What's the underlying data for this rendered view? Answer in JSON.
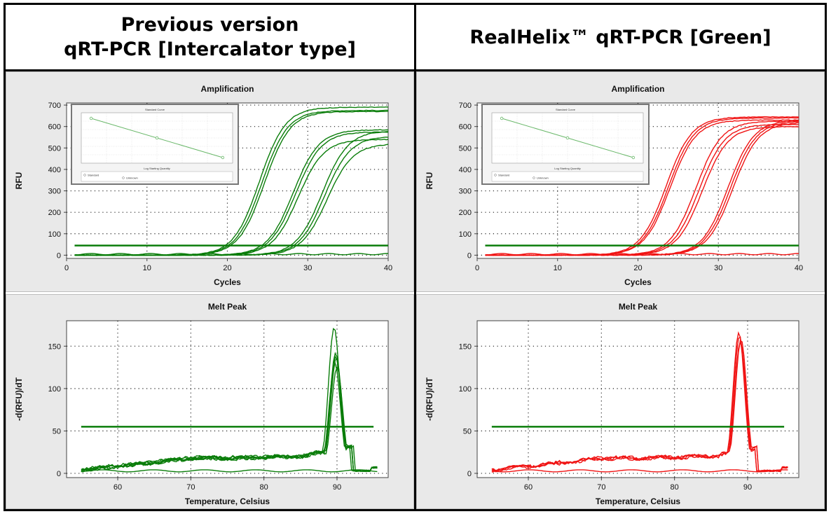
{
  "headers": {
    "left_line1": "Previous version",
    "left_line2": "qRT-PCR [Intercalator type]",
    "right_line1": "RealHelix™ qRT-PCR [Green]"
  },
  "colors": {
    "green": "#0a7d0a",
    "red": "#f01414",
    "threshold": "#0a7d0a",
    "inset_line": "#6ab86a"
  },
  "chart_data": [
    {
      "id": "amp-left",
      "type": "line",
      "title": "Amplification",
      "xlabel": "Cycles",
      "ylabel": "RFU",
      "xlim": [
        0,
        40
      ],
      "ylim": [
        -15,
        710
      ],
      "xticks": [
        0,
        10,
        20,
        30,
        40
      ],
      "yticks": [
        0,
        100,
        200,
        300,
        400,
        500,
        600,
        700
      ],
      "grid": true,
      "color": "green",
      "threshold": 45,
      "series": [
        {
          "ct": 24,
          "plateau": 690
        },
        {
          "ct": 24.3,
          "plateau": 675
        },
        {
          "ct": 24.6,
          "plateau": 670
        },
        {
          "ct": 28.2,
          "plateau": 585
        },
        {
          "ct": 28.5,
          "plateau": 575
        },
        {
          "ct": 28.8,
          "plateau": 540
        },
        {
          "ct": 31.8,
          "plateau": 580
        },
        {
          "ct": 32.1,
          "plateau": 555
        },
        {
          "ct": 32.4,
          "plateau": 520
        },
        {
          "ct": null,
          "plateau": 5
        }
      ],
      "inset": {
        "title": "Standard Curve",
        "xlabel": "Log Starting Quantity",
        "legend": [
          "Standard",
          "Unknown"
        ],
        "points": [
          [
            2,
            37
          ],
          [
            4,
            30
          ],
          [
            6,
            23
          ]
        ]
      }
    },
    {
      "id": "amp-right",
      "type": "line",
      "title": "Amplification",
      "xlabel": "Cycles",
      "ylabel": "RFU",
      "xlim": [
        0,
        40
      ],
      "ylim": [
        -15,
        710
      ],
      "xticks": [
        0,
        10,
        20,
        30,
        40
      ],
      "yticks": [
        0,
        100,
        200,
        300,
        400,
        500,
        600,
        700
      ],
      "grid": true,
      "color": "red",
      "threshold": 45,
      "series": [
        {
          "ct": 23.5,
          "plateau": 645
        },
        {
          "ct": 23.8,
          "plateau": 640
        },
        {
          "ct": 24.0,
          "plateau": 630
        },
        {
          "ct": 27.2,
          "plateau": 625
        },
        {
          "ct": 27.6,
          "plateau": 610
        },
        {
          "ct": 28.0,
          "plateau": 600
        },
        {
          "ct": 31.2,
          "plateau": 630
        },
        {
          "ct": 31.5,
          "plateau": 625
        },
        {
          "ct": 31.8,
          "plateau": 620
        },
        {
          "ct": null,
          "plateau": 5
        }
      ],
      "inset": {
        "title": "Standard Curve",
        "xlabel": "Log Starting Quantity",
        "legend": [
          "Standard",
          "Unknown"
        ],
        "points": [
          [
            2,
            37
          ],
          [
            4,
            30
          ],
          [
            6,
            23
          ]
        ]
      }
    },
    {
      "id": "melt-left",
      "type": "line",
      "title": "Melt Peak",
      "xlabel": "Temperature, Celsius",
      "ylabel": "-d(RFU)/dT",
      "xlim": [
        53,
        97
      ],
      "ylim": [
        -5,
        180
      ],
      "xticks": [
        60,
        70,
        80,
        90
      ],
      "yticks": [
        0,
        50,
        100,
        150
      ],
      "grid": true,
      "color": "green",
      "threshold": 55,
      "series": [
        {
          "peak_t": 89.6,
          "peak": 172
        },
        {
          "peak_t": 89.8,
          "peak": 142
        },
        {
          "peak_t": 89.9,
          "peak": 136
        },
        {
          "peak_t": 89.7,
          "peak": 130
        },
        {
          "peak_t": 90.0,
          "peak": 125
        },
        {
          "peak_t": 89.8,
          "peak": 138
        },
        {
          "peak_t": null,
          "peak": 0
        }
      ]
    },
    {
      "id": "melt-right",
      "type": "line",
      "title": "Melt Peak",
      "xlabel": "Temperature, Celsius",
      "ylabel": "-d(RFU)/dT",
      "xlim": [
        53,
        97
      ],
      "ylim": [
        -5,
        180
      ],
      "xticks": [
        60,
        70,
        80,
        90
      ],
      "yticks": [
        0,
        50,
        100,
        150
      ],
      "grid": true,
      "color": "red",
      "threshold": 55,
      "series": [
        {
          "peak_t": 88.8,
          "peak": 166
        },
        {
          "peak_t": 88.9,
          "peak": 162
        },
        {
          "peak_t": 89.0,
          "peak": 155
        },
        {
          "peak_t": 89.1,
          "peak": 158
        },
        {
          "peak_t": null,
          "peak": 0
        }
      ]
    }
  ]
}
